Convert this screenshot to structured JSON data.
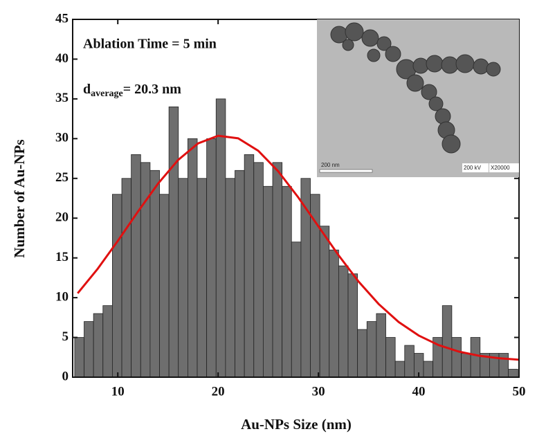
{
  "chart_data": {
    "type": "histogram",
    "xlabel": "Au-NPs Size (nm)",
    "ylabel": "Number of Au-NPs",
    "annotations": {
      "time": "Ablation Time = 5 min",
      "d": "d",
      "sub": "average",
      "rest": "= 20.3 nm"
    },
    "inset": {
      "scale": "200 nm",
      "kv": "200 kV",
      "mag": "X20000"
    },
    "bins": [
      5.7,
      6.64,
      7.58,
      8.52,
      9.46,
      10.4,
      11.34,
      12.28,
      13.22,
      14.16,
      15.1,
      16.04,
      16.98,
      17.92,
      18.86,
      19.8,
      20.74,
      21.68,
      22.62,
      23.56,
      24.5,
      25.44,
      26.38,
      27.32,
      28.26,
      29.2,
      30.14,
      31.08,
      32.02,
      32.96,
      33.9,
      34.84,
      35.78,
      36.72,
      37.66,
      38.6,
      39.54,
      40.48,
      41.42,
      42.36,
      43.3,
      44.24,
      45.18,
      46.12,
      47.06,
      48.0,
      48.94,
      49.88
    ],
    "counts": [
      5,
      7,
      8,
      9,
      23,
      25,
      28,
      27,
      26,
      23,
      34,
      25,
      30,
      25,
      30,
      35,
      25,
      26,
      28,
      27,
      24,
      27,
      24,
      17,
      25,
      23,
      19,
      16,
      14,
      13,
      6,
      7,
      8,
      5,
      2,
      4,
      3,
      2,
      5,
      9,
      5,
      3,
      5,
      3,
      3,
      3,
      1
    ],
    "color": "#6e6e6e",
    "fit": {
      "color": "#e01010",
      "x": [
        6,
        8,
        10,
        12,
        14,
        16,
        18,
        20,
        22,
        24,
        26,
        28,
        30,
        32,
        34,
        36,
        38,
        40,
        42,
        44,
        46,
        48,
        50
      ],
      "values": [
        10.55,
        13.64,
        17.14,
        20.81,
        24.32,
        27.3,
        29.4,
        30.36,
        30.04,
        28.48,
        25.88,
        22.6,
        18.97,
        15.35,
        12.03,
        9.21,
        6.94,
        5.24,
        4.03,
        3.22,
        2.7,
        2.38,
        2.2
      ]
    },
    "xlim": [
      5.5,
      50
    ],
    "xticks": [
      10,
      20,
      30,
      40,
      50
    ],
    "ylim": [
      0,
      45
    ],
    "yticks": [
      0,
      5,
      10,
      15,
      20,
      25,
      30,
      35,
      40,
      45
    ]
  }
}
